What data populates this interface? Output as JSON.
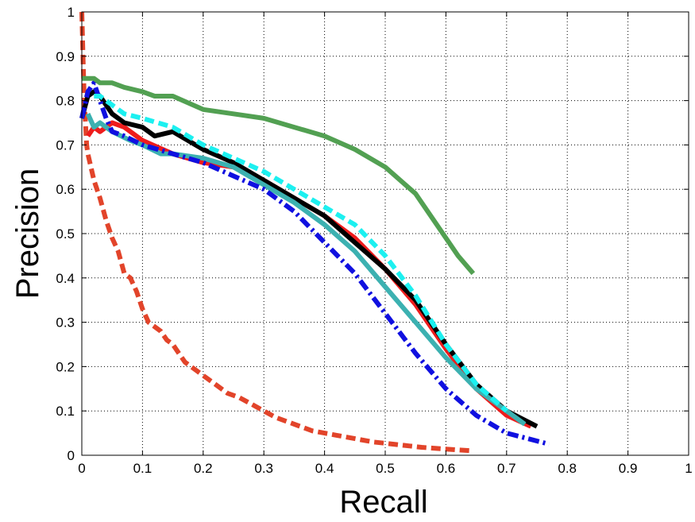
{
  "chart_data": {
    "type": "line",
    "title": "",
    "xlabel": "Recall",
    "ylabel": "Precision",
    "xlim": [
      0,
      1
    ],
    "ylim": [
      0,
      1
    ],
    "grid": true,
    "legend": "none",
    "x_ticks": [
      "0",
      "0.1",
      "0.2",
      "0.3",
      "0.4",
      "0.5",
      "0.6",
      "0.7",
      "0.8",
      "0.9",
      "1"
    ],
    "y_ticks": [
      "0",
      "0.1",
      "0.2",
      "0.3",
      "0.4",
      "0.5",
      "0.6",
      "0.7",
      "0.8",
      "0.9",
      "1"
    ],
    "series": [
      {
        "color": "#e2442a",
        "style": "dashed",
        "x": [
          0.0,
          0.002,
          0.004,
          0.006,
          0.008,
          0.01,
          0.015,
          0.02,
          0.03,
          0.04,
          0.05,
          0.06,
          0.07,
          0.08,
          0.09,
          0.1,
          0.11,
          0.12,
          0.13,
          0.14,
          0.15,
          0.16,
          0.17,
          0.18,
          0.19,
          0.2,
          0.22,
          0.24,
          0.26,
          0.28,
          0.3,
          0.32,
          0.34,
          0.36,
          0.38,
          0.4,
          0.42,
          0.44,
          0.46,
          0.48,
          0.5,
          0.52,
          0.54,
          0.56,
          0.58,
          0.6,
          0.62,
          0.645
        ],
        "y": [
          1.0,
          0.9,
          0.8,
          0.75,
          0.7,
          0.68,
          0.65,
          0.62,
          0.58,
          0.53,
          0.49,
          0.46,
          0.41,
          0.4,
          0.37,
          0.33,
          0.3,
          0.29,
          0.28,
          0.26,
          0.25,
          0.23,
          0.21,
          0.2,
          0.19,
          0.18,
          0.16,
          0.14,
          0.13,
          0.115,
          0.1,
          0.085,
          0.075,
          0.065,
          0.055,
          0.05,
          0.045,
          0.04,
          0.035,
          0.03,
          0.027,
          0.024,
          0.021,
          0.018,
          0.016,
          0.014,
          0.012,
          0.01
        ]
      },
      {
        "color": "#ee1c1c",
        "style": "solid",
        "x": [
          0.01,
          0.02,
          0.03,
          0.05,
          0.07,
          0.1,
          0.15,
          0.2,
          0.25,
          0.3,
          0.35,
          0.4,
          0.45,
          0.5,
          0.55,
          0.6,
          0.65,
          0.7,
          0.74
        ],
        "y": [
          0.72,
          0.74,
          0.73,
          0.75,
          0.74,
          0.71,
          0.68,
          0.66,
          0.65,
          0.62,
          0.58,
          0.54,
          0.49,
          0.42,
          0.34,
          0.24,
          0.15,
          0.09,
          0.065
        ]
      },
      {
        "color": "#000000",
        "style": "solid",
        "x": [
          0.0,
          0.01,
          0.02,
          0.03,
          0.05,
          0.07,
          0.1,
          0.12,
          0.15,
          0.2,
          0.25,
          0.3,
          0.35,
          0.4,
          0.45,
          0.5,
          0.55,
          0.6,
          0.65,
          0.7,
          0.75
        ],
        "y": [
          0.76,
          0.81,
          0.82,
          0.81,
          0.77,
          0.75,
          0.74,
          0.72,
          0.73,
          0.69,
          0.66,
          0.62,
          0.58,
          0.54,
          0.48,
          0.42,
          0.35,
          0.25,
          0.16,
          0.1,
          0.065
        ]
      },
      {
        "color": "#3cb1b1",
        "style": "solid",
        "x": [
          0.01,
          0.02,
          0.03,
          0.05,
          0.08,
          0.1,
          0.13,
          0.15,
          0.2,
          0.25,
          0.3,
          0.35,
          0.4,
          0.45,
          0.5,
          0.55,
          0.6,
          0.65,
          0.7,
          0.73
        ],
        "y": [
          0.77,
          0.74,
          0.75,
          0.73,
          0.71,
          0.7,
          0.68,
          0.68,
          0.67,
          0.65,
          0.61,
          0.57,
          0.52,
          0.46,
          0.38,
          0.3,
          0.22,
          0.15,
          0.1,
          0.07
        ]
      },
      {
        "color": "#1010e0",
        "style": "dashdot",
        "x": [
          0.0,
          0.01,
          0.02,
          0.03,
          0.04,
          0.05,
          0.07,
          0.1,
          0.15,
          0.2,
          0.25,
          0.3,
          0.35,
          0.4,
          0.45,
          0.5,
          0.55,
          0.6,
          0.65,
          0.7,
          0.77
        ],
        "y": [
          0.76,
          0.82,
          0.84,
          0.8,
          0.76,
          0.73,
          0.72,
          0.7,
          0.68,
          0.66,
          0.63,
          0.6,
          0.55,
          0.48,
          0.41,
          0.32,
          0.23,
          0.15,
          0.09,
          0.05,
          0.025
        ]
      },
      {
        "color": "#1cf0f0",
        "style": "dashed",
        "x": [
          0.02,
          0.03,
          0.05,
          0.07,
          0.1,
          0.15,
          0.2,
          0.25,
          0.3,
          0.35,
          0.4,
          0.45,
          0.5,
          0.55,
          0.6,
          0.65,
          0.7
        ],
        "y": [
          0.81,
          0.81,
          0.79,
          0.77,
          0.76,
          0.74,
          0.7,
          0.67,
          0.64,
          0.6,
          0.56,
          0.52,
          0.45,
          0.36,
          0.25,
          0.16,
          0.1
        ]
      },
      {
        "color": "#52a052",
        "style": "solid",
        "x": [
          0.0,
          0.01,
          0.02,
          0.03,
          0.05,
          0.07,
          0.1,
          0.12,
          0.15,
          0.2,
          0.25,
          0.3,
          0.35,
          0.4,
          0.45,
          0.5,
          0.55,
          0.6,
          0.62,
          0.645
        ],
        "y": [
          0.85,
          0.85,
          0.85,
          0.84,
          0.84,
          0.83,
          0.82,
          0.81,
          0.81,
          0.78,
          0.77,
          0.76,
          0.74,
          0.72,
          0.69,
          0.65,
          0.59,
          0.49,
          0.45,
          0.41
        ]
      }
    ]
  }
}
